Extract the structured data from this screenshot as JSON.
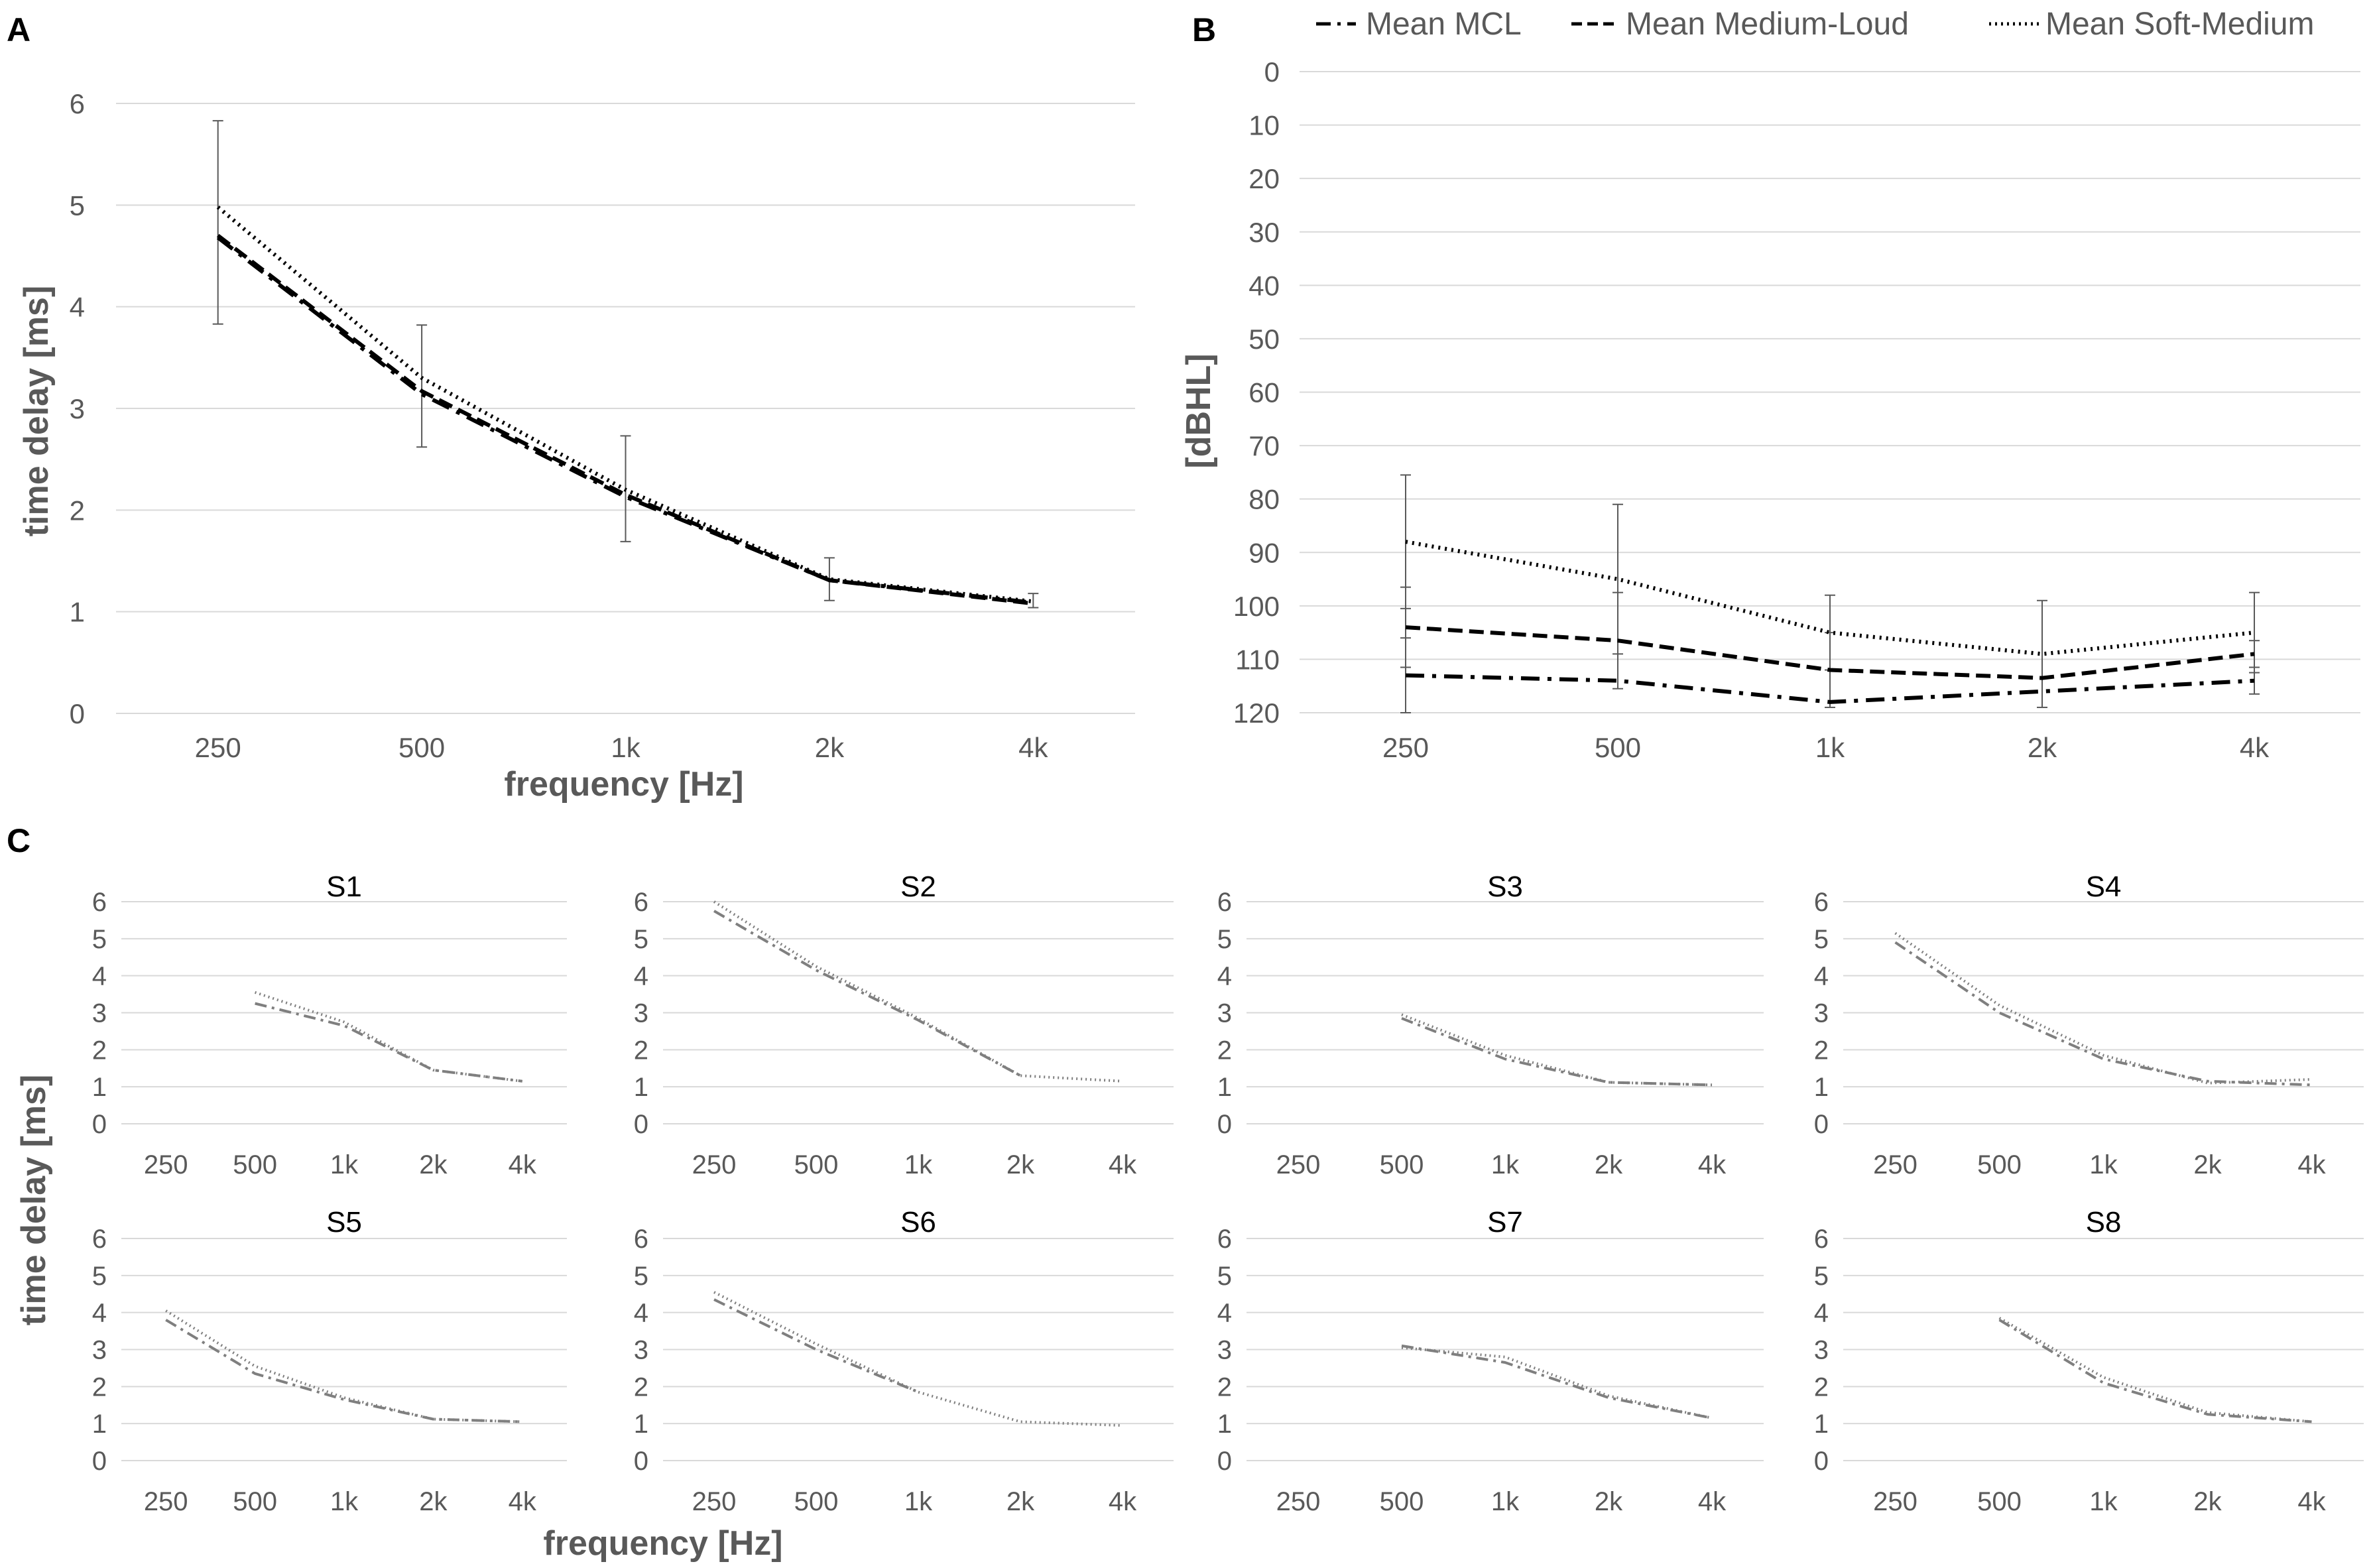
{
  "panels": {
    "a": {
      "letter": "A"
    },
    "b": {
      "letter": "B"
    },
    "c": {
      "letter": "C"
    }
  },
  "colors": {
    "main_line": "#000000",
    "small_line": "#7f7f7f",
    "grid": "#d9d9d9",
    "error_bar": "#595959"
  },
  "legend": {
    "mcl": "Mean MCL",
    "medium_loud": "Mean Medium-Loud",
    "soft_medium": "Mean Soft-Medium"
  },
  "chart_data": [
    {
      "id": "A",
      "type": "line",
      "title": "",
      "xlabel": "frequency [Hz]",
      "ylabel": "time delay [ms]",
      "categories": [
        "250",
        "500",
        "1k",
        "2k",
        "4k"
      ],
      "yticks": [
        0,
        1,
        2,
        3,
        4,
        5,
        6
      ],
      "ylim": [
        0,
        6.3
      ],
      "series": [
        {
          "name": "Mean MCL",
          "style": "dashdot",
          "values": [
            4.68,
            3.14,
            2.13,
            1.31,
            1.09
          ]
        },
        {
          "name": "Mean Medium-Loud",
          "style": "dashed",
          "values": [
            4.7,
            3.17,
            2.15,
            1.31,
            1.08
          ]
        },
        {
          "name": "Mean Soft-Medium",
          "style": "dotted",
          "values": [
            4.98,
            3.3,
            2.2,
            1.32,
            1.1
          ]
        }
      ],
      "error_bars": {
        "center": [
          4.83,
          3.22,
          2.21,
          1.32,
          1.11
        ],
        "half_width": [
          1.0,
          0.6,
          0.52,
          0.21,
          0.07
        ]
      }
    },
    {
      "id": "B",
      "type": "line",
      "title": "",
      "xlabel": "",
      "ylabel": "[dBHL]",
      "categories": [
        "250",
        "500",
        "1k",
        "2k",
        "4k"
      ],
      "yticks": [
        0,
        10,
        20,
        30,
        40,
        50,
        60,
        70,
        80,
        90,
        100,
        110,
        120
      ],
      "ylim": [
        0,
        120
      ],
      "y_inverted": true,
      "series": [
        {
          "name": "Mean MCL",
          "style": "dashdot",
          "values": [
            113,
            114,
            118,
            116,
            114
          ],
          "err": [
            7,
            0,
            0,
            0,
            2.5
          ]
        },
        {
          "name": "Mean Medium-Loud",
          "style": "dashed",
          "values": [
            104,
            106.5,
            112,
            113.5,
            109
          ],
          "err": [
            7.5,
            9,
            7,
            0,
            2.5
          ]
        },
        {
          "name": "Mean Soft-Medium",
          "style": "dotted",
          "values": [
            88,
            95,
            105,
            109,
            105
          ],
          "err": [
            12.5,
            14,
            7,
            10,
            7.5
          ]
        }
      ]
    },
    {
      "id": "C",
      "type": "line",
      "xlabel": "frequency [Hz]",
      "ylabel": "time delay [ms]",
      "categories": [
        "250",
        "500",
        "1k",
        "2k",
        "4k"
      ],
      "yticks": [
        0,
        1,
        2,
        3,
        4,
        5,
        6
      ],
      "ylim": [
        0,
        6
      ],
      "subplots": [
        {
          "title": "S1",
          "mcl": [
            null,
            3.25,
            2.65,
            1.45,
            1.15
          ],
          "soft": [
            null,
            3.55,
            2.75,
            1.45,
            1.15
          ]
        },
        {
          "title": "S2",
          "mcl": [
            5.75,
            4.15,
            2.8,
            1.3,
            null
          ],
          "soft": [
            6.0,
            4.25,
            2.85,
            1.3,
            1.15
          ]
        },
        {
          "title": "S3",
          "mcl": [
            null,
            2.85,
            1.75,
            1.12,
            1.05
          ],
          "soft": [
            null,
            2.95,
            1.85,
            1.12,
            1.05
          ]
        },
        {
          "title": "S4",
          "mcl": [
            4.9,
            3.0,
            1.75,
            1.15,
            1.05
          ],
          "soft": [
            5.15,
            3.2,
            1.85,
            1.1,
            1.2
          ]
        },
        {
          "title": "S5",
          "mcl": [
            3.8,
            2.35,
            1.65,
            1.12,
            1.05
          ],
          "soft": [
            4.05,
            2.55,
            1.7,
            1.12,
            1.05
          ]
        },
        {
          "title": "S6",
          "mcl": [
            4.35,
            3.0,
            1.85,
            null,
            null
          ],
          "soft": [
            4.55,
            3.15,
            1.85,
            1.05,
            0.95
          ]
        },
        {
          "title": "S7",
          "mcl": [
            null,
            3.1,
            2.65,
            1.7,
            1.15
          ],
          "soft": [
            null,
            3.05,
            2.8,
            1.75,
            1.15
          ]
        },
        {
          "title": "S8",
          "mcl": [
            null,
            3.8,
            2.1,
            1.25,
            1.05
          ],
          "soft": [
            null,
            3.85,
            2.25,
            1.3,
            1.05
          ]
        }
      ]
    }
  ]
}
